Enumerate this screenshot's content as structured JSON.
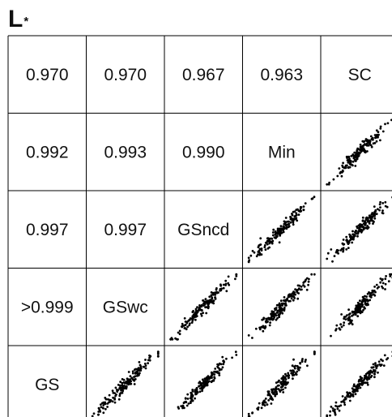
{
  "figure": {
    "label": "L",
    "label_superscript": "*"
  },
  "chart_data": {
    "type": "scatter-matrix",
    "title": "L*",
    "variables": [
      "GS",
      "GSwc",
      "GSncd",
      "Min",
      "SC"
    ],
    "correlations": [
      {
        "row": "GSwc",
        "col": "GS",
        "text": ">0.999"
      },
      {
        "row": "GSncd",
        "col": "GS",
        "text": "0.997"
      },
      {
        "row": "GSncd",
        "col": "GSwc",
        "text": "0.997"
      },
      {
        "row": "Min",
        "col": "GS",
        "text": "0.992"
      },
      {
        "row": "Min",
        "col": "GSwc",
        "text": "0.993"
      },
      {
        "row": "Min",
        "col": "GSncd",
        "text": "0.990"
      },
      {
        "row": "SC",
        "col": "GS",
        "text": "0.970"
      },
      {
        "row": "SC",
        "col": "GSwc",
        "text": "0.970"
      },
      {
        "row": "SC",
        "col": "GSncd",
        "text": "0.967"
      },
      {
        "row": "SC",
        "col": "Min",
        "text": "0.963"
      }
    ],
    "scatter_spread": {
      "GS|GSwc": 0.03,
      "GS|GSncd": 0.06,
      "GSwc|GSncd": 0.06,
      "GS|Min": 0.08,
      "GSwc|Min": 0.08,
      "GSncd|Min": 0.09,
      "GS|SC": 0.15,
      "GSwc|SC": 0.15,
      "GSncd|SC": 0.16,
      "Min|SC": 0.17
    },
    "points_per_panel": 160,
    "grid": false,
    "legend": "none"
  }
}
